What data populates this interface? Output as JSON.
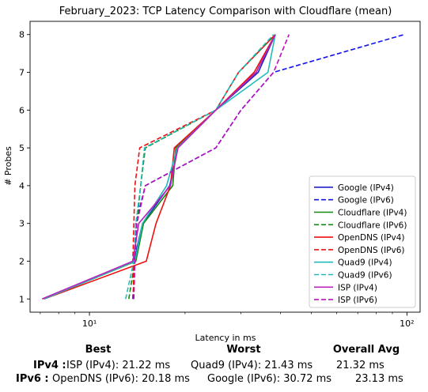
{
  "chart_data": {
    "type": "line",
    "title": "February_2023: TCP Latency Comparison with Cloudflare (mean)",
    "xlabel": "Latency in ms",
    "ylabel": "# Probes",
    "xscale": "log",
    "xlim": [
      6.5,
      110
    ],
    "ylim": [
      0.65,
      8.35
    ],
    "x_ticks": [
      {
        "value": 10,
        "label": "10¹"
      },
      {
        "value": 100,
        "label": "10²"
      }
    ],
    "y_ticks": [
      1,
      2,
      3,
      4,
      5,
      6,
      7,
      8
    ],
    "grid": false,
    "legend_position": "lower-right",
    "y": [
      1,
      2,
      3,
      4,
      5,
      6,
      7,
      8
    ],
    "series": [
      {
        "name": "Google (IPv4)",
        "color": "#2222cc",
        "dash": "solid",
        "x": [
          7.1,
          13.8,
          14.7,
          17.9,
          19.0,
          25.0,
          34.0,
          38.5
        ]
      },
      {
        "name": "Google (IPv6)",
        "color": "#1111ee",
        "dash": "dashed",
        "x": [
          13.7,
          13.9,
          14.0,
          15.0,
          25.0,
          30.0,
          38.0,
          98.0
        ]
      },
      {
        "name": "Cloudflare (IPv4)",
        "color": "#118811",
        "dash": "solid",
        "x": [
          7.2,
          14.0,
          14.8,
          18.3,
          18.7,
          25.0,
          33.5,
          38.5
        ]
      },
      {
        "name": "Cloudflare (IPv6)",
        "color": "#118811",
        "dash": "dashed",
        "x": [
          13.3,
          13.9,
          14.1,
          14.5,
          15.0,
          25.0,
          29.5,
          38.5
        ]
      },
      {
        "name": "OpenDNS (IPv4)",
        "color": "#ee1111",
        "dash": "solid",
        "x": [
          7.2,
          15.1,
          16.2,
          18.0,
          18.5,
          25.0,
          33.0,
          38.5
        ]
      },
      {
        "name": "OpenDNS (IPv6)",
        "color": "#ee1111",
        "dash": "dashed",
        "x": [
          13.8,
          13.7,
          13.8,
          13.9,
          14.4,
          25.0,
          29.5,
          38.5
        ]
      },
      {
        "name": "Quad9 (IPv4)",
        "color": "#22bbbb",
        "dash": "solid",
        "x": [
          7.2,
          13.9,
          14.7,
          17.5,
          18.9,
          25.0,
          36.5,
          38.5
        ]
      },
      {
        "name": "Quad9 (IPv6)",
        "color": "#22bbbb",
        "dash": "dashed",
        "x": [
          13.0,
          13.8,
          14.0,
          14.5,
          14.9,
          25.0,
          29.5,
          38.0
        ]
      },
      {
        "name": "ISP (IPv4)",
        "color": "#bb22bb",
        "dash": "solid",
        "x": [
          7.1,
          13.7,
          14.3,
          18.0,
          19.0,
          25.0,
          33.5,
          38.5
        ]
      },
      {
        "name": "ISP (IPv6)",
        "color": "#bb11bb",
        "dash": "dashed",
        "x": [
          13.8,
          13.9,
          14.1,
          15.0,
          25.0,
          30.0,
          38.0,
          42.5
        ]
      }
    ]
  },
  "summary": {
    "headers": {
      "best": "Best",
      "worst": "Worst",
      "avg": "Overall Avg"
    },
    "rows": [
      {
        "label": "IPv4 :",
        "best": "ISP (IPv4): 21.22 ms",
        "worst": "Quad9 (IPv4): 21.43 ms",
        "avg": "21.32 ms"
      },
      {
        "label": "IPv6 :",
        "best": "OpenDNS (IPv6): 20.18 ms",
        "worst": "Google (IPv6): 30.72 ms",
        "avg": "23.13 ms"
      }
    ]
  }
}
